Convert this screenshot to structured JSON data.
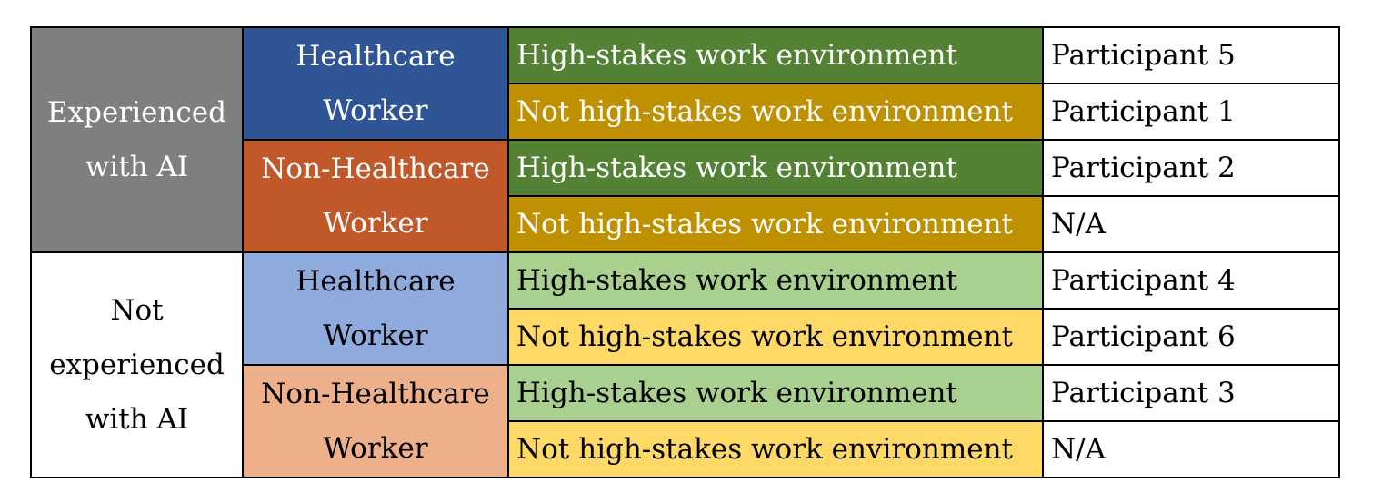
{
  "table": {
    "groups": [
      {
        "label_lines": [
          "Experienced",
          "with AI"
        ],
        "workers": [
          {
            "label_lines": [
              "Healthcare",
              "Worker"
            ],
            "rows": [
              {
                "environment": "High-stakes work environment",
                "participant": "Participant 5"
              },
              {
                "environment": "Not high-stakes work environment",
                "participant": "Participant 1"
              }
            ]
          },
          {
            "label_lines": [
              "Non-Healthcare",
              "Worker"
            ],
            "rows": [
              {
                "environment": "High-stakes work environment",
                "participant": "Participant 2"
              },
              {
                "environment": "Not high-stakes work environment",
                "participant": "N/A"
              }
            ]
          }
        ]
      },
      {
        "label_lines": [
          "Not",
          "experienced",
          "with AI"
        ],
        "workers": [
          {
            "label_lines": [
              "Healthcare",
              "Worker"
            ],
            "rows": [
              {
                "environment": "High-stakes work environment",
                "participant": "Participant 4"
              },
              {
                "environment": "Not high-stakes work environment",
                "participant": "Participant 6"
              }
            ]
          },
          {
            "label_lines": [
              "Non-Healthcare",
              "Worker"
            ],
            "rows": [
              {
                "environment": "High-stakes work environment",
                "participant": "Participant 3"
              },
              {
                "environment": "Not high-stakes work environment",
                "participant": "N/A"
              }
            ]
          }
        ]
      }
    ]
  },
  "colors": {
    "experienced_group": "#7f7f7f",
    "healthcare_experienced": "#2f5597",
    "non_healthcare_experienced": "#c0582a",
    "healthcare_not_experienced": "#8faadc",
    "non_healthcare_not_experienced": "#edb08a",
    "high_stakes_experienced": "#548235",
    "not_high_stakes_experienced": "#bf9000",
    "high_stakes_not_experienced": "#a9d08e",
    "not_high_stakes_not_experienced": "#ffd966"
  }
}
